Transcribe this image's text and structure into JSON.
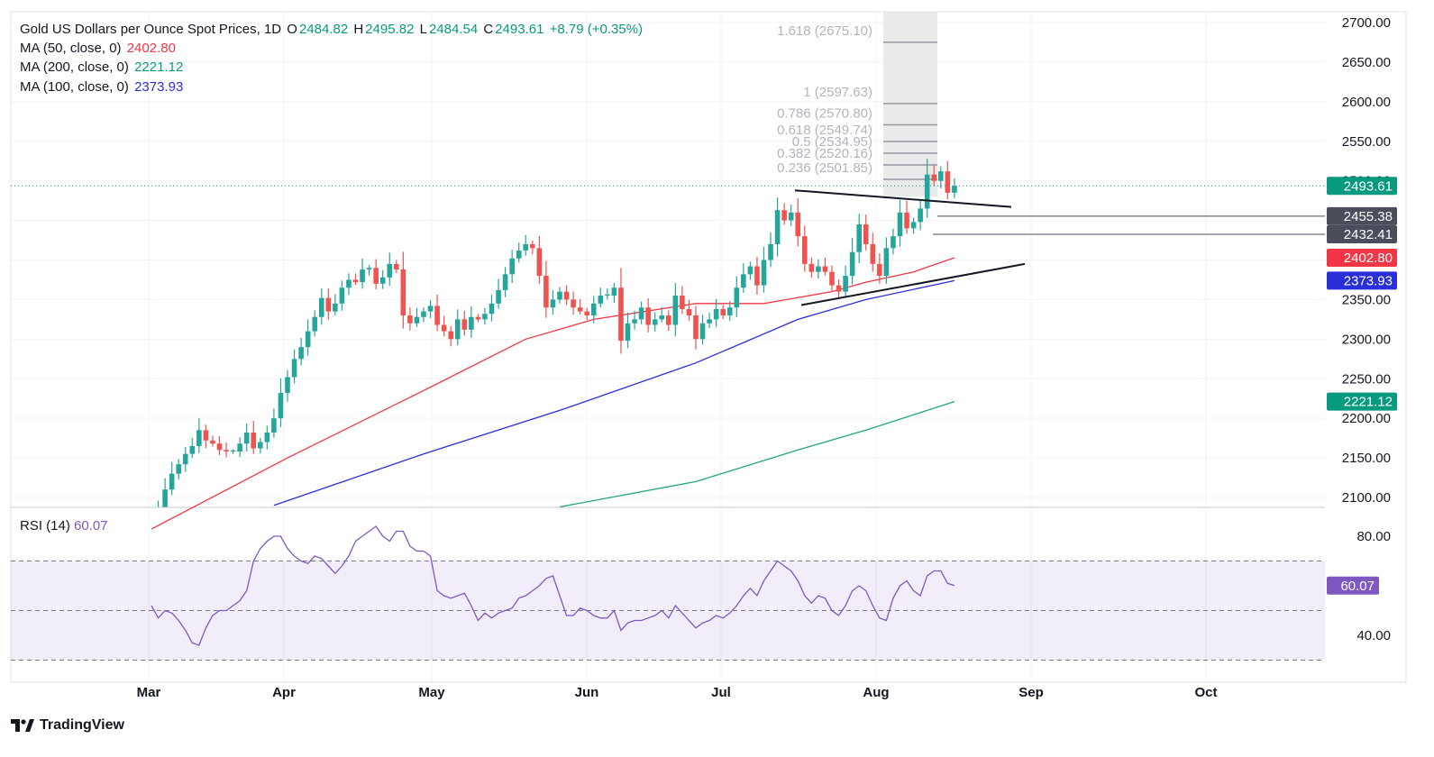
{
  "legend": {
    "symbol": "Gold US Dollars per Ounce Spot Prices, 1D",
    "o_label": "O",
    "o": "2484.82",
    "h_label": "H",
    "h": "2495.82",
    "l_label": "L",
    "l": "2484.54",
    "c_label": "C",
    "c": "2493.61",
    "change": "+8.79 (+0.35%)",
    "ma50_label": "MA (50, close, 0)",
    "ma50_value": "2402.80",
    "ma200_label": "MA (200, close, 0)",
    "ma200_value": "2221.12",
    "ma100_label": "MA (100, close, 0)",
    "ma100_value": "2373.93",
    "rsi_label": "RSI (14)",
    "rsi_value": "60.07"
  },
  "brand": "TradingView",
  "colors": {
    "up": "#26a69a",
    "down": "#ef5350",
    "ma50": "#f23645",
    "ma100": "#2a2ed9",
    "ma200": "#22a77a",
    "rsi": "#7e57c2"
  },
  "chart_data": {
    "type": "candlestick",
    "title": "Gold US Dollars per Ounce Spot Prices, 1D",
    "x_ticks": [
      "Mar",
      "Apr",
      "May",
      "Jun",
      "Jul",
      "Aug",
      "Sep",
      "Oct"
    ],
    "y_ticks": [
      "2100.00",
      "2150.00",
      "2200.00",
      "2250.00",
      "2300.00",
      "2350.00",
      "2400.00",
      "2450.00",
      "2500.00",
      "2550.00",
      "2600.00",
      "2650.00",
      "2700.00"
    ],
    "ylim": [
      2088,
      2713
    ],
    "grid": true,
    "closes": [
      2065,
      2085,
      2110,
      2130,
      2142,
      2155,
      2165,
      2185,
      2172,
      2168,
      2160,
      2158,
      2158,
      2168,
      2182,
      2162,
      2170,
      2182,
      2200,
      2232,
      2252,
      2275,
      2290,
      2310,
      2328,
      2352,
      2335,
      2345,
      2365,
      2375,
      2372,
      2388,
      2390,
      2370,
      2378,
      2395,
      2388,
      2330,
      2320,
      2328,
      2335,
      2342,
      2318,
      2310,
      2300,
      2325,
      2312,
      2328,
      2325,
      2332,
      2345,
      2362,
      2382,
      2402,
      2412,
      2420,
      2415,
      2380,
      2340,
      2350,
      2360,
      2350,
      2340,
      2335,
      2330,
      2345,
      2355,
      2355,
      2365,
      2298,
      2320,
      2325,
      2340,
      2318,
      2325,
      2330,
      2318,
      2355,
      2338,
      2330,
      2300,
      2320,
      2325,
      2338,
      2330,
      2340,
      2365,
      2382,
      2392,
      2368,
      2400,
      2420,
      2463,
      2450,
      2460,
      2430,
      2395,
      2385,
      2392,
      2385,
      2368,
      2360,
      2380,
      2410,
      2445,
      2420,
      2395,
      2380,
      2415,
      2430,
      2460,
      2440,
      2448,
      2465,
      2508,
      2500,
      2512,
      2485,
      2493.61
    ],
    "last_price_label": "2493.61",
    "price_labels": [
      {
        "text": "2493.61",
        "value": 2493.61,
        "color": "#089981"
      },
      {
        "text": "2455.38",
        "value": 2455.38,
        "color": "#4a4e5c"
      },
      {
        "text": "2432.41",
        "value": 2432.41,
        "color": "#4a4e5c"
      },
      {
        "text": "2402.80",
        "value": 2402.8,
        "color": "#f23645"
      },
      {
        "text": "2373.93",
        "value": 2373.93,
        "color": "#2a2ed9"
      },
      {
        "text": "2221.12",
        "value": 2221.12,
        "color": "#089981"
      }
    ],
    "fibonacci": [
      {
        "label": "1.618 (2675.10)",
        "value": 2675.1
      },
      {
        "label": "1 (2597.63)",
        "value": 2597.63
      },
      {
        "label": "0.786 (2570.80)",
        "value": 2570.8
      },
      {
        "label": "0.618 (2549.74)",
        "value": 2549.74
      },
      {
        "label": "0.5 (2534.95)",
        "value": 2534.95
      },
      {
        "label": "0.382 (2520.16)",
        "value": 2520.16
      },
      {
        "label": "0.236 (2501.85)",
        "value": 2501.85
      }
    ],
    "ma50": [
      [
        0,
        2060
      ],
      [
        20,
        2150
      ],
      [
        40,
        2235
      ],
      [
        55,
        2300
      ],
      [
        65,
        2325
      ],
      [
        80,
        2345
      ],
      [
        90,
        2345
      ],
      [
        100,
        2360
      ],
      [
        105,
        2372
      ],
      [
        112,
        2385
      ],
      [
        118,
        2402.8
      ]
    ],
    "ma100": [
      [
        18,
        2090
      ],
      [
        40,
        2155
      ],
      [
        60,
        2210
      ],
      [
        80,
        2270
      ],
      [
        95,
        2325
      ],
      [
        105,
        2350
      ],
      [
        118,
        2373.93
      ]
    ],
    "ma200": [
      [
        60,
        2088
      ],
      [
        80,
        2120
      ],
      [
        95,
        2160
      ],
      [
        105,
        2185
      ],
      [
        118,
        2221.12
      ]
    ],
    "rsi": {
      "label": "RSI (14)",
      "current": "60.07",
      "ticks": [
        "80.00",
        "40.00"
      ],
      "bands": [
        70,
        30
      ],
      "mid": 50,
      "values": [
        52,
        47,
        50,
        49,
        46,
        42,
        37,
        36,
        43,
        48,
        50,
        50,
        52,
        54,
        58,
        70,
        75,
        78,
        80,
        80,
        75,
        72,
        70,
        69,
        72,
        71,
        68,
        65,
        68,
        72,
        78,
        80,
        82,
        84,
        80,
        78,
        82,
        82,
        76,
        74,
        74,
        72,
        58,
        56,
        55,
        56,
        57,
        52,
        46,
        49,
        47,
        49,
        50,
        51,
        55,
        56,
        58,
        60,
        63,
        64,
        56,
        48,
        48,
        51,
        50,
        48,
        47,
        47,
        50,
        42,
        45,
        46,
        46,
        47,
        48,
        50,
        47,
        52,
        49,
        46,
        43,
        45,
        46,
        48,
        47,
        49,
        52,
        56,
        59,
        56,
        62,
        66,
        70,
        68,
        66,
        62,
        56,
        53,
        56,
        55,
        50,
        48,
        52,
        58,
        60,
        58,
        52,
        47,
        46,
        55,
        60,
        62,
        58,
        56,
        64,
        66,
        66,
        61,
        60.07
      ],
      "ylim": [
        22,
        86
      ]
    }
  }
}
